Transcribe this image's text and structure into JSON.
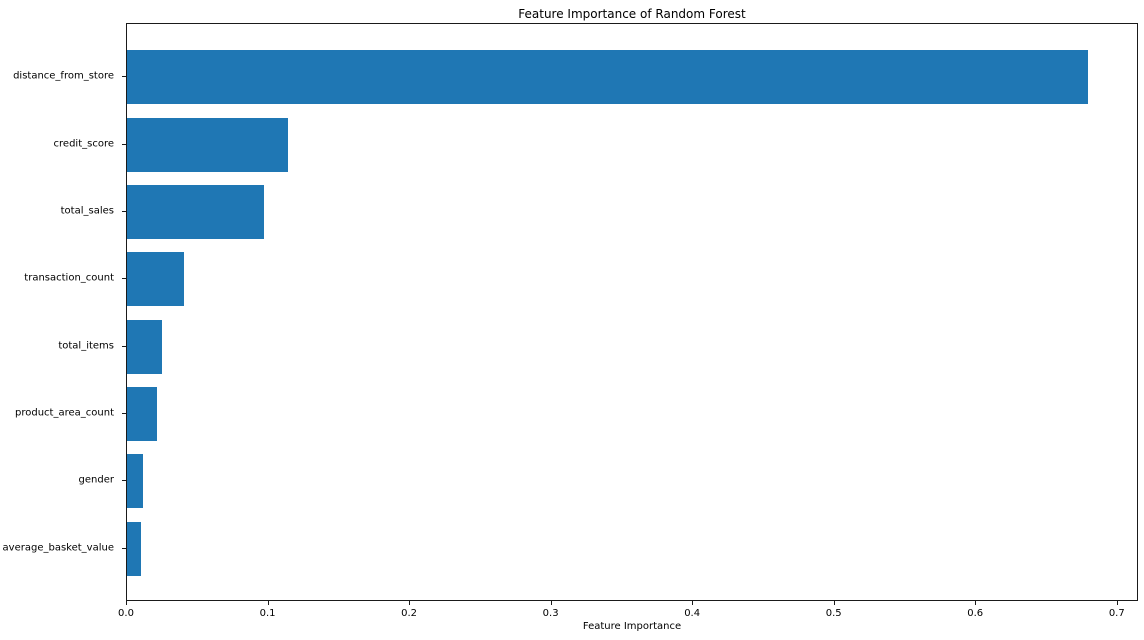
{
  "chart_data": {
    "type": "bar",
    "orientation": "horizontal",
    "title": "Feature Importance of Random Forest",
    "xlabel": "Feature Importance",
    "ylabel": "",
    "categories": [
      "distance_from_store",
      "credit_score",
      "total_sales",
      "transaction_count",
      "total_items",
      "product_area_count",
      "gender",
      "average_basket_value"
    ],
    "values": [
      0.68,
      0.114,
      0.097,
      0.04,
      0.025,
      0.021,
      0.011,
      0.01
    ],
    "xlim": [
      0,
      0.715
    ],
    "xticks": [
      0.0,
      0.1,
      0.2,
      0.3,
      0.4,
      0.5,
      0.6,
      0.7
    ],
    "xtick_labels": [
      "0.0",
      "0.1",
      "0.2",
      "0.3",
      "0.4",
      "0.5",
      "0.6",
      "0.7"
    ],
    "bar_color": "#1f77b4",
    "grid": false,
    "legend_position": "none",
    "background_color": "#ffffff"
  }
}
